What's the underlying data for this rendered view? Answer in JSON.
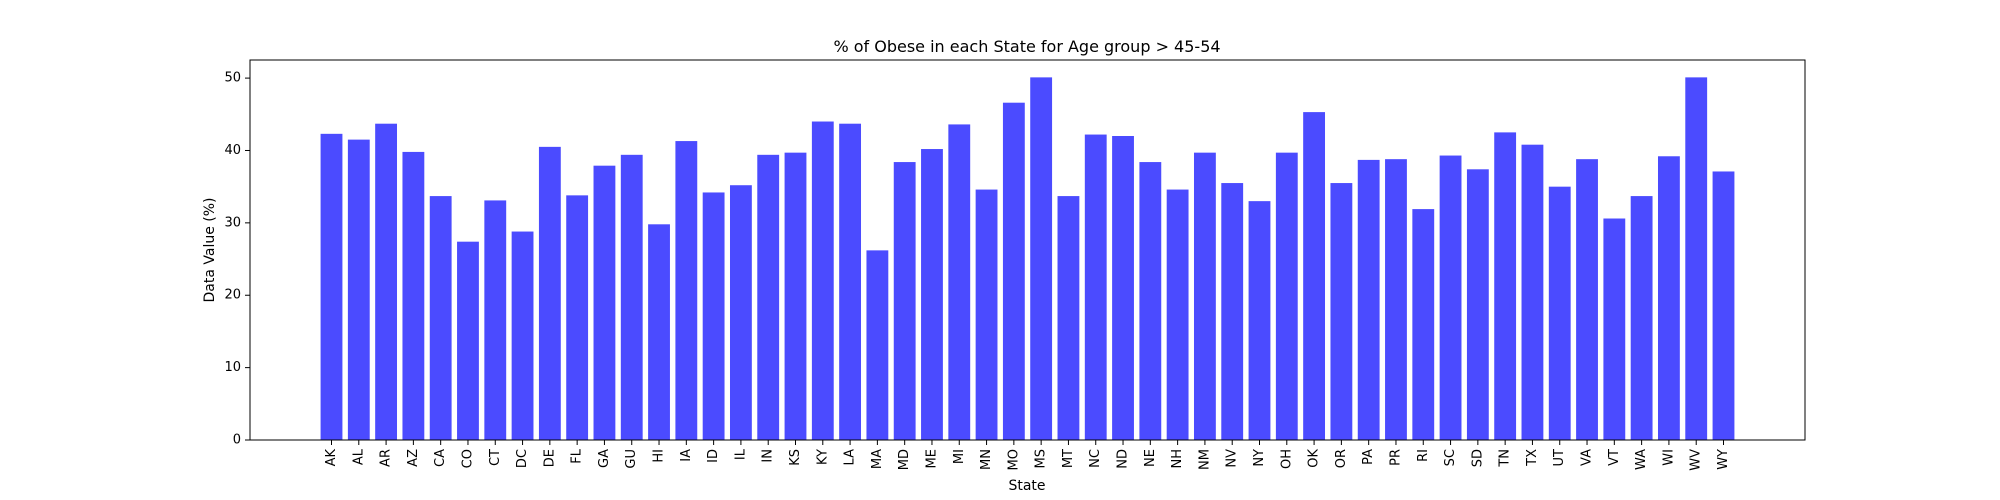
{
  "chart_data": {
    "type": "bar",
    "title": "% of Obese in each State for Age group > 45-54",
    "xlabel": "State",
    "ylabel": "Data Value (%)",
    "ylim": [
      0,
      52.5
    ],
    "yticks": [
      0,
      10,
      20,
      30,
      40,
      50
    ],
    "grid": false,
    "bar_color": "#4b4bff",
    "categories": [
      "AK",
      "AL",
      "AR",
      "AZ",
      "CA",
      "CO",
      "CT",
      "DC",
      "DE",
      "FL",
      "GA",
      "GU",
      "HI",
      "IA",
      "ID",
      "IL",
      "IN",
      "KS",
      "KY",
      "LA",
      "MA",
      "MD",
      "ME",
      "MI",
      "MN",
      "MO",
      "MS",
      "MT",
      "NC",
      "ND",
      "NE",
      "NH",
      "NM",
      "NV",
      "NY",
      "OH",
      "OK",
      "OR",
      "PA",
      "PR",
      "RI",
      "SC",
      "SD",
      "TN",
      "TX",
      "UT",
      "VA",
      "VT",
      "WA",
      "WI",
      "WV",
      "WY"
    ],
    "values": [
      42.3,
      41.5,
      43.7,
      39.8,
      33.7,
      27.4,
      33.1,
      28.8,
      40.5,
      33.8,
      37.9,
      39.4,
      29.8,
      41.3,
      34.2,
      35.2,
      39.4,
      39.7,
      44.0,
      43.7,
      26.2,
      38.4,
      40.2,
      43.6,
      34.6,
      46.6,
      50.1,
      33.7,
      42.2,
      42.0,
      38.4,
      34.6,
      39.7,
      35.5,
      33.0,
      39.7,
      45.3,
      35.5,
      38.7,
      38.8,
      31.9,
      39.3,
      37.4,
      42.5,
      40.8,
      35.0,
      38.8,
      30.6,
      33.7,
      39.2,
      50.1,
      37.1
    ]
  }
}
